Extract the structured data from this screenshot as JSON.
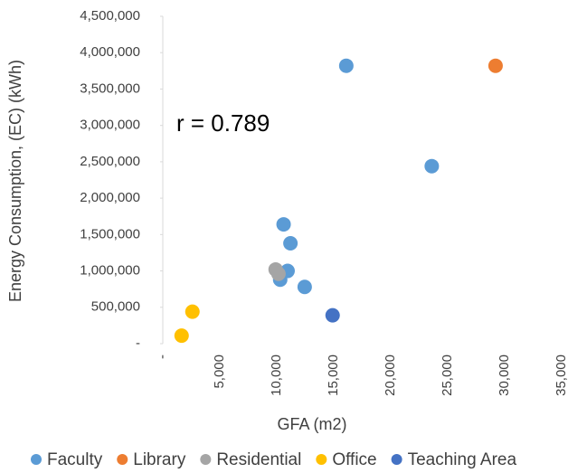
{
  "chart_data": {
    "type": "scatter",
    "annotation": "r = 0.789",
    "x_label": "GFA (m2)",
    "y_label": "Energy Consumption, (EC) (kWh)",
    "xlim": [
      0,
      35000
    ],
    "xticks": [
      {
        "value": 0,
        "label": "-"
      },
      {
        "value": 5000,
        "label": "5,000"
      },
      {
        "value": 10000,
        "label": "10,000"
      },
      {
        "value": 15000,
        "label": "15,000"
      },
      {
        "value": 20000,
        "label": "20,000"
      },
      {
        "value": 25000,
        "label": "25,000"
      },
      {
        "value": 30000,
        "label": "30,000"
      },
      {
        "value": 35000,
        "label": "35,000"
      }
    ],
    "ylim": [
      0,
      4500000
    ],
    "yticks": [
      {
        "value": 0,
        "label": "-"
      },
      {
        "value": 500000,
        "label": "500,000"
      },
      {
        "value": 1000000,
        "label": "1,000,000"
      },
      {
        "value": 1500000,
        "label": "1,500,000"
      },
      {
        "value": 2000000,
        "label": "2,000,000"
      },
      {
        "value": 2500000,
        "label": "2,500,000"
      },
      {
        "value": 3000000,
        "label": "3,000,000"
      },
      {
        "value": 3500000,
        "label": "3,500,000"
      },
      {
        "value": 4000000,
        "label": "4,000,000"
      },
      {
        "value": 4500000,
        "label": "4,500,000"
      }
    ],
    "legend": "bottom",
    "series": [
      {
        "name": "Faculty",
        "color": "#5b9bd5",
        "x": [
          16100,
          23600,
          10600,
          11200,
          10950,
          10300,
          12450
        ],
        "values": [
          3820000,
          2440000,
          1640000,
          1380000,
          1000000,
          880000,
          780000
        ]
      },
      {
        "name": "Library",
        "color": "#ed7d31",
        "x": [
          29200
        ],
        "values": [
          3820000
        ]
      },
      {
        "name": "Residential",
        "color": "#a5a5a5",
        "x": [
          9900,
          10150
        ],
        "values": [
          1020000,
          960000
        ]
      },
      {
        "name": "Office",
        "color": "#ffc000",
        "x": [
          2600,
          1650
        ],
        "values": [
          440000,
          110000
        ]
      },
      {
        "name": "Teaching Area",
        "color": "#4472c4",
        "x": [
          14900
        ],
        "values": [
          390000
        ]
      }
    ]
  }
}
